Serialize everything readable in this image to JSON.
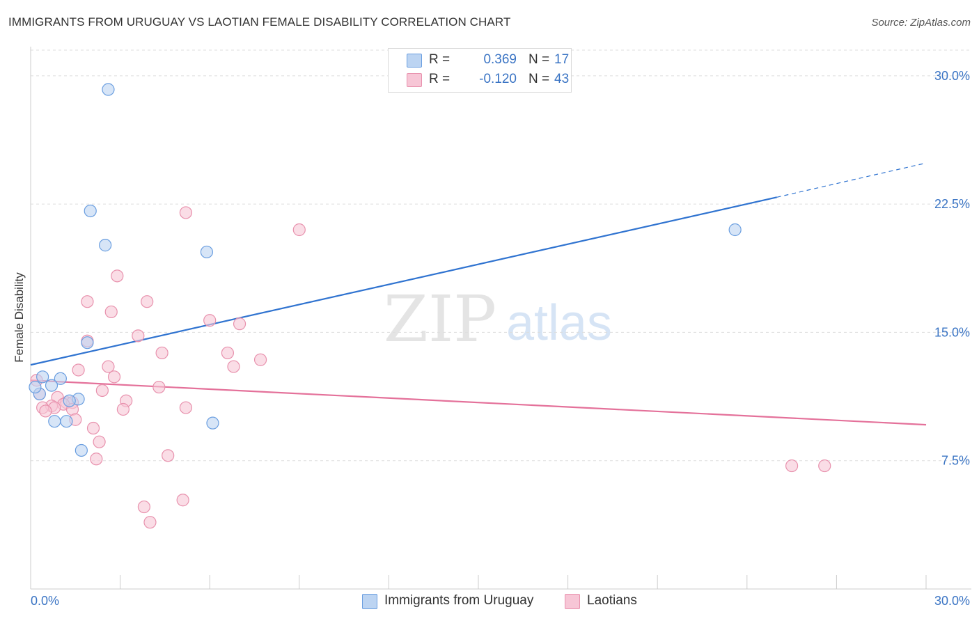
{
  "title": "IMMIGRANTS FROM URUGUAY VS LAOTIAN FEMALE DISABILITY CORRELATION CHART",
  "source": "Source: ZipAtlas.com",
  "watermark": {
    "zip": "ZIP",
    "atlas": "atlas"
  },
  "legend": {
    "rows": [
      {
        "r_label": "R =",
        "r_value": "0.369",
        "n_label": "N =",
        "n_value": "17"
      },
      {
        "r_label": "R =",
        "r_value": "-0.120",
        "n_label": "N =",
        "n_value": "43"
      }
    ]
  },
  "bottom_legend": {
    "series1": "Immigrants from Uruguay",
    "series2": "Laotians"
  },
  "colors": {
    "blue_fill": "#bcd4f2",
    "blue_stroke": "#6a9ee0",
    "blue_line": "#2f73d0",
    "pink_fill": "#f7c6d6",
    "pink_stroke": "#e891ad",
    "pink_line": "#e4719a",
    "axis_label": "#3a74c4",
    "grid": "#dddddd"
  },
  "chart_data": {
    "type": "scatter",
    "title": "IMMIGRANTS FROM URUGUAY VS LAOTIAN FEMALE DISABILITY CORRELATION CHART",
    "xlabel": "",
    "ylabel": "Female Disability",
    "xlim": [
      0,
      30
    ],
    "ylim": [
      0,
      31.5
    ],
    "x_tick_labels": [
      "0.0%",
      "30.0%"
    ],
    "y_ticks": [
      7.5,
      15.0,
      22.5,
      30.0
    ],
    "y_tick_labels": [
      "7.5%",
      "15.0%",
      "22.5%",
      "30.0%"
    ],
    "series": [
      {
        "name": "Immigrants from Uruguay",
        "r": 0.369,
        "n": 17,
        "points": [
          {
            "x": 2.6,
            "y": 29.2
          },
          {
            "x": 2.0,
            "y": 22.1
          },
          {
            "x": 2.5,
            "y": 20.1
          },
          {
            "x": 5.9,
            "y": 19.7
          },
          {
            "x": 1.9,
            "y": 14.4
          },
          {
            "x": 23.6,
            "y": 21.0
          },
          {
            "x": 0.4,
            "y": 12.4
          },
          {
            "x": 1.0,
            "y": 12.3
          },
          {
            "x": 0.7,
            "y": 11.9
          },
          {
            "x": 0.3,
            "y": 11.4
          },
          {
            "x": 1.6,
            "y": 11.1
          },
          {
            "x": 1.3,
            "y": 11.0
          },
          {
            "x": 0.8,
            "y": 9.8
          },
          {
            "x": 1.2,
            "y": 9.8
          },
          {
            "x": 6.1,
            "y": 9.7
          },
          {
            "x": 1.7,
            "y": 8.1
          },
          {
            "x": 0.15,
            "y": 11.8
          }
        ],
        "trend": {
          "x0": 0,
          "y0": 13.1,
          "x1": 25.0,
          "y1": 22.9,
          "dash_to_x": 30.0,
          "dash_to_y": 24.9
        }
      },
      {
        "name": "Laotians",
        "r": -0.12,
        "n": 43,
        "points": [
          {
            "x": 5.2,
            "y": 22.0
          },
          {
            "x": 9.0,
            "y": 21.0
          },
          {
            "x": 2.9,
            "y": 18.3
          },
          {
            "x": 1.9,
            "y": 16.8
          },
          {
            "x": 3.9,
            "y": 16.8
          },
          {
            "x": 2.7,
            "y": 16.2
          },
          {
            "x": 6.0,
            "y": 15.7
          },
          {
            "x": 7.0,
            "y": 15.5
          },
          {
            "x": 3.6,
            "y": 14.8
          },
          {
            "x": 1.9,
            "y": 14.5
          },
          {
            "x": 4.4,
            "y": 13.8
          },
          {
            "x": 6.6,
            "y": 13.8
          },
          {
            "x": 7.7,
            "y": 13.4
          },
          {
            "x": 2.6,
            "y": 13.0
          },
          {
            "x": 6.8,
            "y": 13.0
          },
          {
            "x": 1.6,
            "y": 12.8
          },
          {
            "x": 2.8,
            "y": 12.4
          },
          {
            "x": 0.2,
            "y": 12.2
          },
          {
            "x": 4.3,
            "y": 11.8
          },
          {
            "x": 2.4,
            "y": 11.6
          },
          {
            "x": 0.3,
            "y": 11.4
          },
          {
            "x": 0.9,
            "y": 11.2
          },
          {
            "x": 3.2,
            "y": 11.0
          },
          {
            "x": 1.2,
            "y": 10.9
          },
          {
            "x": 1.4,
            "y": 10.9
          },
          {
            "x": 1.1,
            "y": 10.8
          },
          {
            "x": 0.7,
            "y": 10.7
          },
          {
            "x": 0.4,
            "y": 10.6
          },
          {
            "x": 0.8,
            "y": 10.6
          },
          {
            "x": 5.2,
            "y": 10.6
          },
          {
            "x": 1.4,
            "y": 10.5
          },
          {
            "x": 3.1,
            "y": 10.5
          },
          {
            "x": 0.5,
            "y": 10.4
          },
          {
            "x": 1.5,
            "y": 9.9
          },
          {
            "x": 2.1,
            "y": 9.4
          },
          {
            "x": 2.3,
            "y": 8.6
          },
          {
            "x": 4.6,
            "y": 7.8
          },
          {
            "x": 2.2,
            "y": 7.6
          },
          {
            "x": 25.5,
            "y": 7.2
          },
          {
            "x": 26.6,
            "y": 7.2
          },
          {
            "x": 5.1,
            "y": 5.2
          },
          {
            "x": 3.8,
            "y": 4.8
          },
          {
            "x": 4.0,
            "y": 3.9
          }
        ],
        "trend": {
          "x0": 0,
          "y0": 12.2,
          "x1": 30.0,
          "y1": 9.6
        }
      }
    ]
  }
}
